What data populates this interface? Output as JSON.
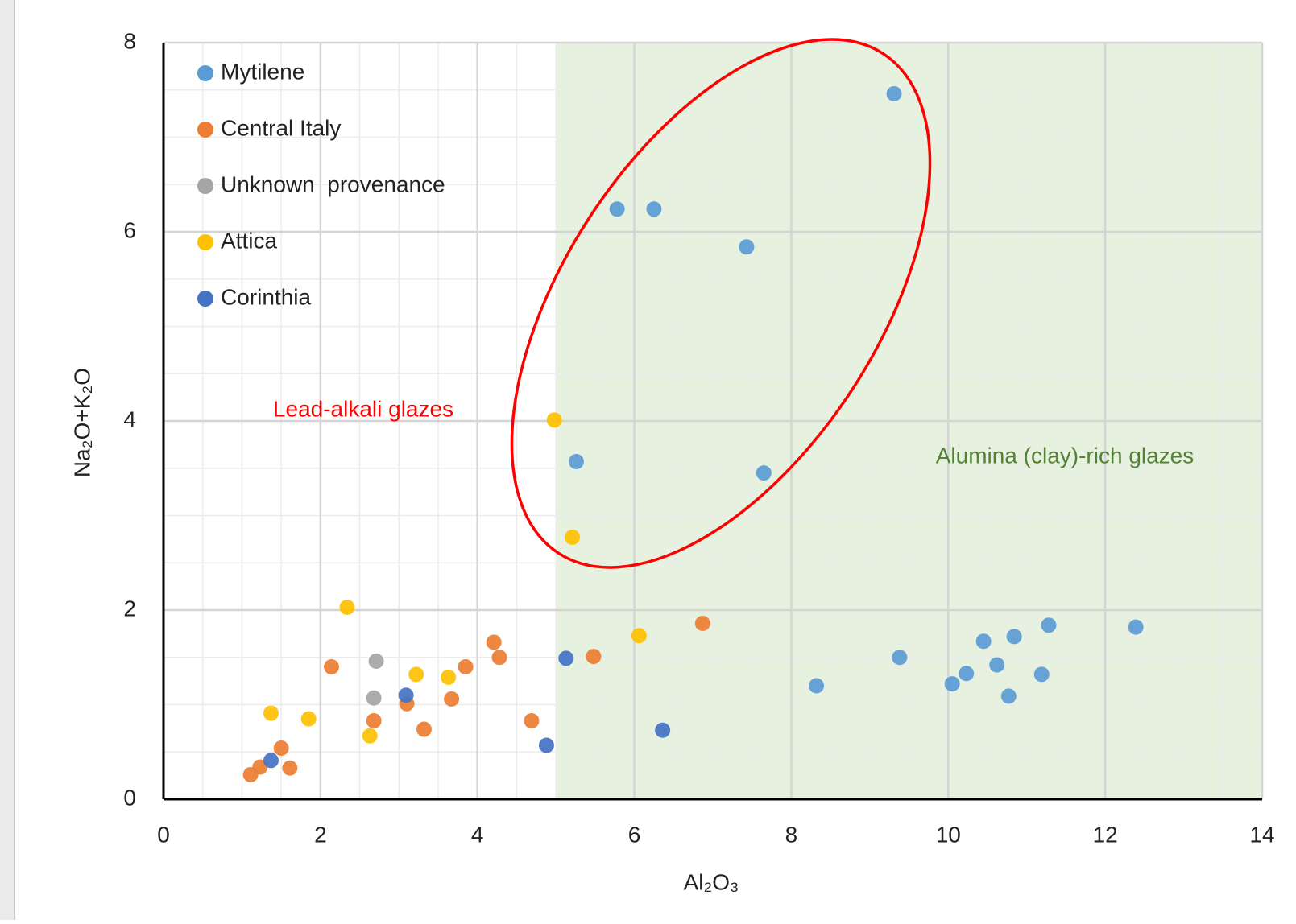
{
  "chart_data": {
    "type": "scatter",
    "x_label": "Al₂O₃",
    "y_label": "Na₂O+K₂O",
    "xlim": [
      0,
      14
    ],
    "ylim": [
      0,
      8
    ],
    "xticks": [
      0,
      2,
      4,
      6,
      8,
      10,
      12,
      14
    ],
    "yticks": [
      0,
      2,
      4,
      6,
      8
    ],
    "grid": true,
    "minor_grid_step": 0.5,
    "legend": "upper left",
    "shaded_region": {
      "xlim": [
        5,
        14
      ],
      "color": "#e2efd9"
    },
    "annotations": [
      {
        "text": "Lead-alkali glazes",
        "color": "#ff0000"
      },
      {
        "text": "Alumina (clay)-rich glazes",
        "color": "#538135"
      }
    ],
    "series": [
      {
        "name": "Mytilene",
        "color": "#5b9bd5",
        "x": [
          9.31,
          5.78,
          6.25,
          7.43,
          5.26,
          7.65,
          8.32,
          9.38,
          10.05,
          10.23,
          10.45,
          10.62,
          10.77,
          10.84,
          11.19,
          11.28,
          12.39
        ],
        "values": [
          7.46,
          6.24,
          6.24,
          5.84,
          3.57,
          3.45,
          1.2,
          1.5,
          1.22,
          1.33,
          1.67,
          1.42,
          1.09,
          1.72,
          1.32,
          1.84,
          1.82
        ]
      },
      {
        "name": "Central Italy",
        "color": "#ed7d31",
        "x": [
          1.11,
          1.23,
          1.5,
          1.61,
          2.14,
          2.68,
          3.1,
          3.32,
          3.67,
          3.85,
          4.21,
          4.28,
          4.69,
          5.48,
          6.87
        ],
        "values": [
          0.26,
          0.34,
          0.54,
          0.33,
          1.4,
          0.83,
          1.01,
          0.74,
          1.06,
          1.4,
          1.66,
          1.5,
          0.83,
          1.51,
          1.86
        ]
      },
      {
        "name": "Unknown  provenance",
        "color": "#a5a5a5",
        "x": [
          2.71,
          2.68
        ],
        "values": [
          1.46,
          1.07
        ]
      },
      {
        "name": "Attica",
        "color": "#ffc000",
        "x": [
          1.37,
          1.85,
          2.34,
          2.63,
          3.22,
          3.63,
          4.98,
          5.21,
          6.06
        ],
        "values": [
          0.91,
          0.85,
          2.03,
          0.67,
          1.32,
          1.29,
          4.01,
          2.77,
          1.73
        ]
      },
      {
        "name": "Corinthia",
        "color": "#4472c4",
        "x": [
          1.37,
          3.09,
          4.88,
          5.13,
          6.36
        ],
        "values": [
          0.41,
          1.1,
          0.57,
          1.49,
          0.73
        ]
      }
    ]
  }
}
